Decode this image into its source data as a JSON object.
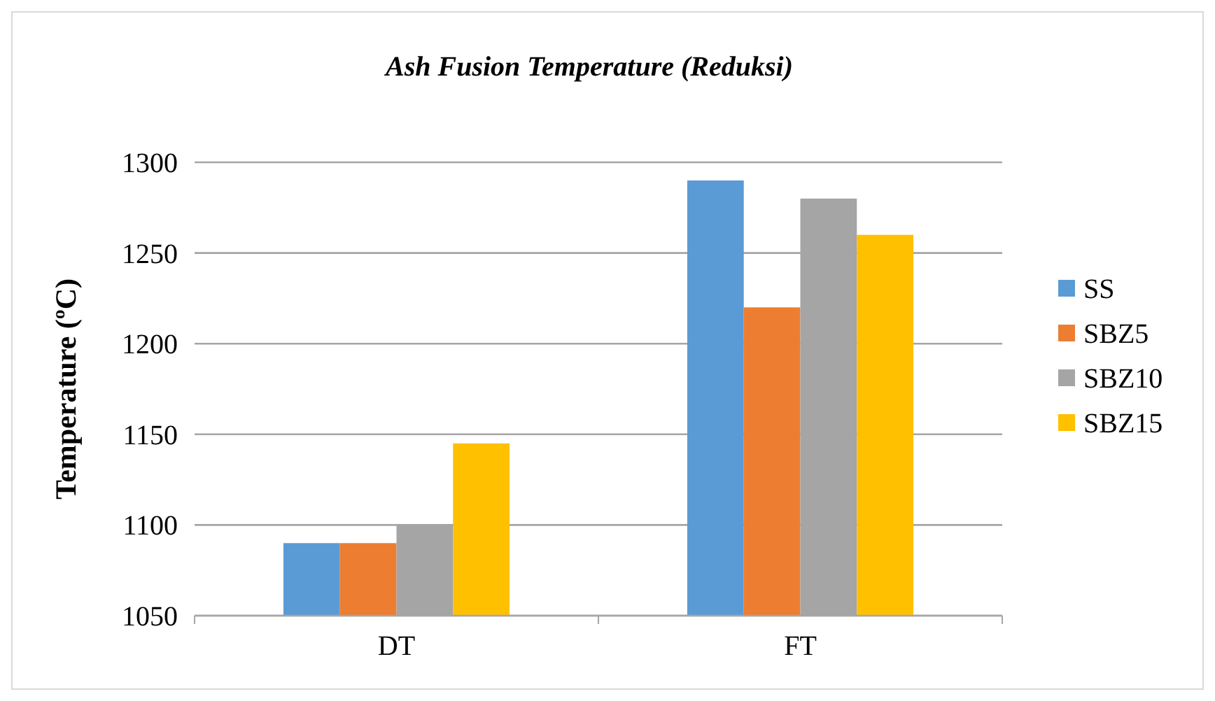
{
  "chart_data": {
    "type": "bar",
    "title": "Ash Fusion Temperature (Reduksi)",
    "ylabel": "Temperature (ºC)",
    "categories": [
      "DT",
      "FT"
    ],
    "series": [
      {
        "name": "SS",
        "color": "#5b9bd5",
        "values": [
          1090,
          1290
        ]
      },
      {
        "name": "SBZ5",
        "color": "#ed7d31",
        "values": [
          1090,
          1220
        ]
      },
      {
        "name": "SBZ10",
        "color": "#a5a5a5",
        "values": [
          1100,
          1280
        ]
      },
      {
        "name": "SBZ15",
        "color": "#ffc000",
        "values": [
          1145,
          1260
        ]
      }
    ],
    "ylim": [
      1050,
      1300
    ],
    "yticks": [
      1050,
      1100,
      1150,
      1200,
      1250,
      1300
    ],
    "grid": "y",
    "legend": "right"
  }
}
